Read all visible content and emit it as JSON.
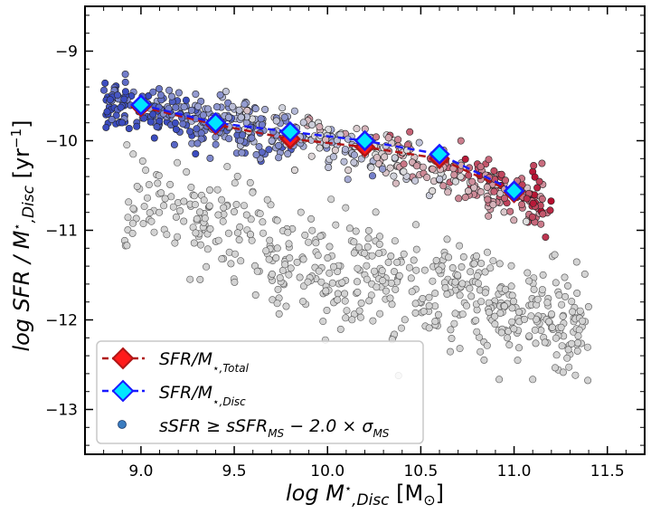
{
  "chart_data": {
    "type": "scatter",
    "xlabel": "log M⋆,Disc [M⊙]",
    "ylabel": "log SFR / M⋆,Disc [yr⁻¹]",
    "xlim": [
      8.7,
      11.7
    ],
    "ylim": [
      -13.5,
      -8.5
    ],
    "x_ticks": [
      9.0,
      9.5,
      10.0,
      10.5,
      11.0,
      11.5
    ],
    "x_tick_labels": [
      "9.0",
      "9.5",
      "10.0",
      "10.5",
      "11.0",
      "11.5"
    ],
    "y_ticks": [
      -9,
      -10,
      -11,
      -12,
      -13
    ],
    "y_tick_labels": [
      "−9",
      "−10",
      "−11",
      "−12",
      "−13"
    ],
    "colors": {
      "passive": "#d3d3d3",
      "total_line": "#b01515",
      "total_marker": "#ff1a1a",
      "disc_line": "#1a1aff",
      "disc_marker": "#00e5ff",
      "cmap_low": "#3b4cc0",
      "cmap_mid": "#dddddd",
      "cmap_high": "#b40426"
    },
    "series": [
      {
        "name": "SFR/M⋆,Total",
        "style": "dashed line with diamond markers",
        "x": [
          9.0,
          9.4,
          9.8,
          10.2,
          10.6,
          11.0
        ],
        "y": [
          -9.62,
          -9.82,
          -9.98,
          -10.07,
          -10.2,
          -10.58
        ]
      },
      {
        "name": "SFR/M⋆,Disc",
        "style": "dashed line with diamond markers",
        "x": [
          9.0,
          9.4,
          9.8,
          10.2,
          10.6,
          11.0
        ],
        "y": [
          -9.6,
          -9.8,
          -9.9,
          -10.0,
          -10.15,
          -10.56
        ]
      }
    ],
    "scatter_populations": [
      {
        "name": "sSFR ≥ sSFR_MS − 2.0 × σ_MS",
        "description": "star-forming main sequence, coloured by a diverging colour scale (blue to red)",
        "x_range": [
          8.8,
          11.2
        ],
        "trend": {
          "x": [
            8.85,
            9.4,
            10.0,
            10.6,
            11.15
          ],
          "y": [
            -9.55,
            -9.8,
            -10.0,
            -10.3,
            -10.7
          ]
        },
        "scatter_dex": 0.35
      },
      {
        "name": "passive",
        "description": "grey points below the main sequence",
        "x_range": [
          8.9,
          11.4
        ],
        "trend": {
          "x": [
            8.9,
            9.5,
            10.0,
            10.5,
            11.0,
            11.4
          ],
          "y": [
            -10.6,
            -11.0,
            -11.4,
            -11.7,
            -11.9,
            -12.1
          ]
        },
        "scatter_dex": 0.55
      }
    ],
    "legend": {
      "position": "lower-left",
      "entries": [
        {
          "label": "SFR/M⋆,Total",
          "marker": "red diamond, dark-red dashed line"
        },
        {
          "label": "SFR/M⋆,Disc",
          "marker": "cyan diamond, blue dashed line"
        },
        {
          "label": "sSFR ≥ sSFR_MS − 2.0 × σ_MS",
          "marker": "small blue circle"
        }
      ]
    },
    "grid": false
  }
}
